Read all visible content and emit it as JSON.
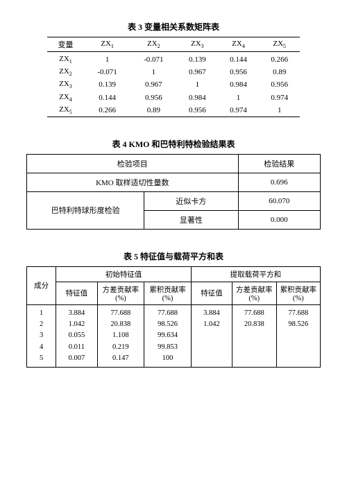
{
  "table3": {
    "caption": "表 3  变量相关系数矩阵表",
    "var_label": "变量",
    "col_prefix": "ZX",
    "cols": [
      "1",
      "2",
      "3",
      "4",
      "5"
    ],
    "rows": [
      {
        "label_idx": "1",
        "cells": [
          "1",
          "-0.071",
          "0.139",
          "0.144",
          "0.266"
        ]
      },
      {
        "label_idx": "2",
        "cells": [
          "-0.071",
          "1",
          "0.967",
          "0.956",
          "0.89"
        ]
      },
      {
        "label_idx": "3",
        "cells": [
          "0.139",
          "0.967",
          "1",
          "0.984",
          "0.956"
        ]
      },
      {
        "label_idx": "4",
        "cells": [
          "0.144",
          "0.956",
          "0.984",
          "1",
          "0.974"
        ]
      },
      {
        "label_idx": "5",
        "cells": [
          "0.266",
          "0.89",
          "0.956",
          "0.974",
          "1"
        ]
      }
    ]
  },
  "table4": {
    "caption": "表 4  KMO 和巴特利特检验结果表",
    "header_item": "检验项目",
    "header_result": "检验结果",
    "kmo_label": "KMO 取样适切性量数",
    "kmo_value": "0.696",
    "bartlett_label": "巴特利特球形度检验",
    "approx_chi_label": "近似卡方",
    "approx_chi_value": "60.070",
    "sig_label": "显著性",
    "sig_value": "0.000"
  },
  "table5": {
    "caption": "表 5  特征值与载荷平方和表",
    "component_label": "成分",
    "initial_header": "初始特征值",
    "extract_header": "提取载荷平方和",
    "eigen_label": "特征值",
    "var_label": "方差贡献率(%)",
    "cum_label": "累积贡献率(%)",
    "rows": [
      {
        "comp": "1",
        "i_e": "3.884",
        "i_v": "77.688",
        "i_c": "77.688",
        "e_e": "3.884",
        "e_v": "77.688",
        "e_c": "77.688"
      },
      {
        "comp": "2",
        "i_e": "1.042",
        "i_v": "20.838",
        "i_c": "98.526",
        "e_e": "1.042",
        "e_v": "20.838",
        "e_c": "98.526"
      },
      {
        "comp": "3",
        "i_e": "0.055",
        "i_v": "1.108",
        "i_c": "99.634",
        "e_e": "",
        "e_v": "",
        "e_c": ""
      },
      {
        "comp": "4",
        "i_e": "0.011",
        "i_v": "0.219",
        "i_c": "99.853",
        "e_e": "",
        "e_v": "",
        "e_c": ""
      },
      {
        "comp": "5",
        "i_e": "0.007",
        "i_v": "0.147",
        "i_c": "100",
        "e_e": "",
        "e_v": "",
        "e_c": ""
      }
    ]
  }
}
